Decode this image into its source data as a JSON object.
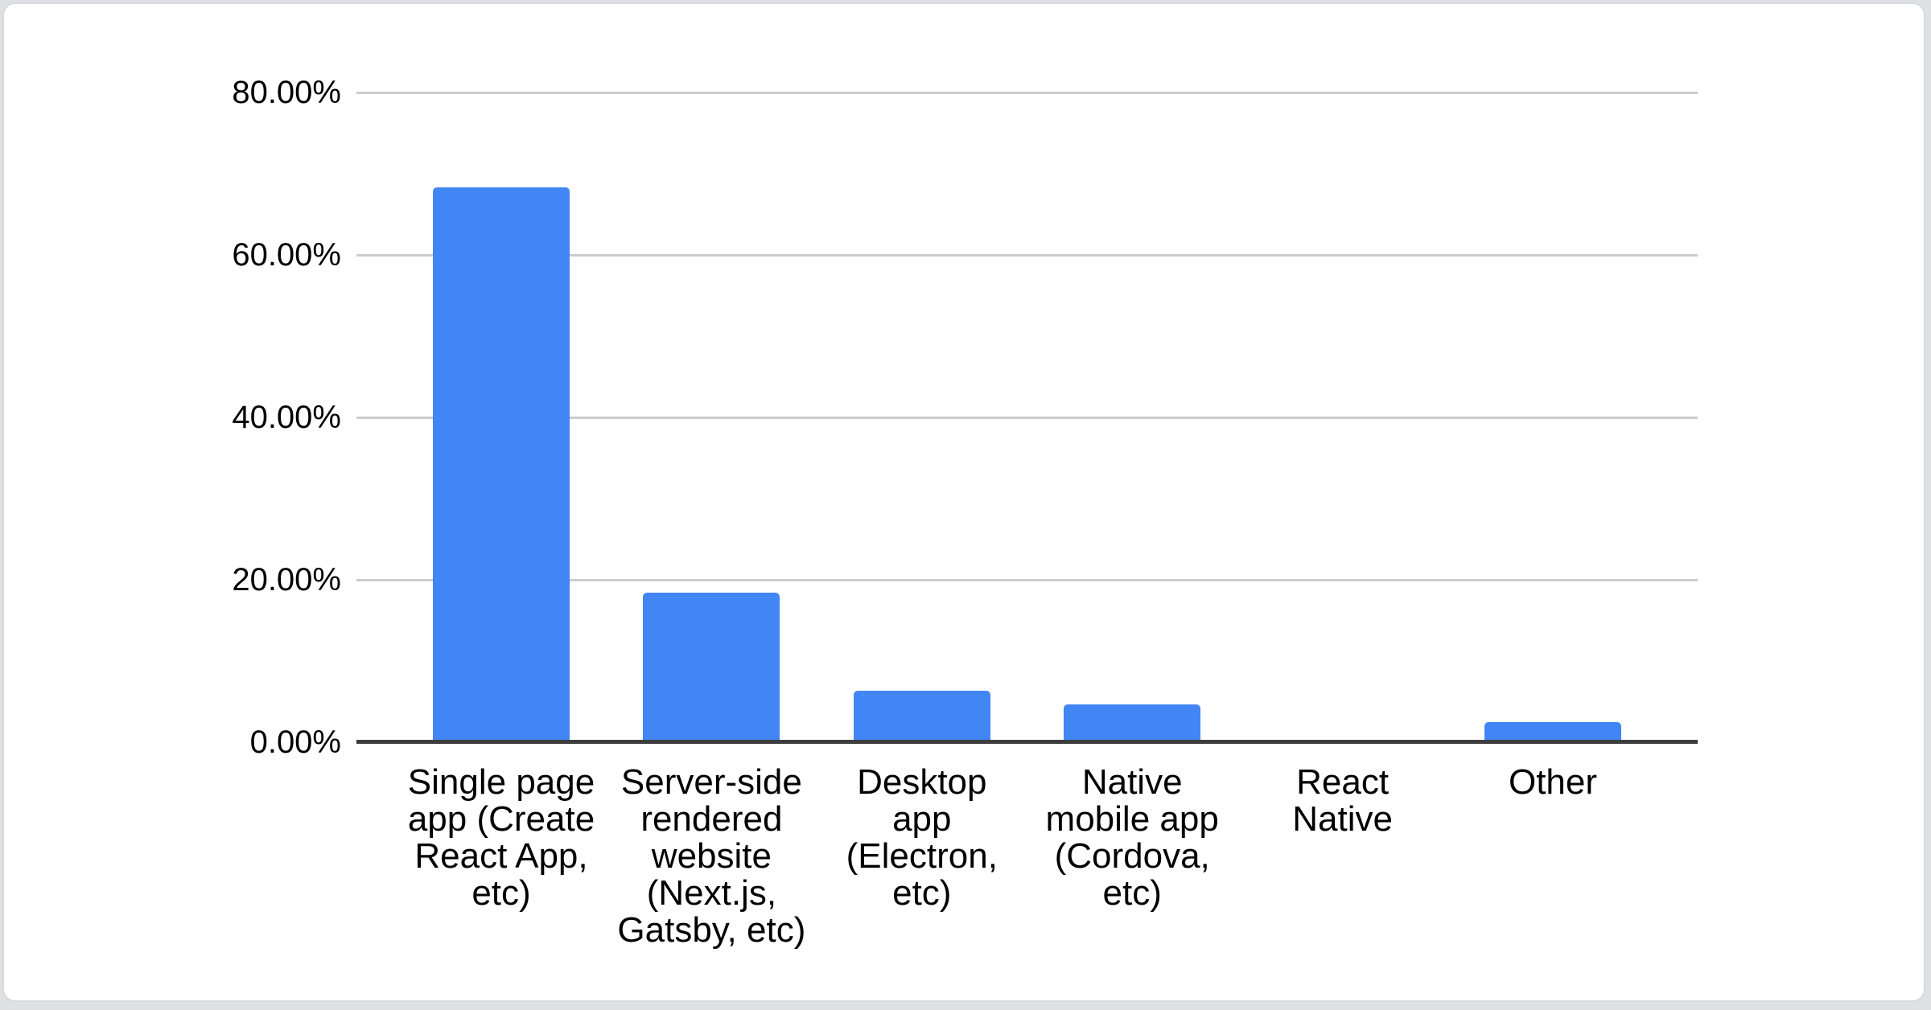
{
  "page": {
    "background_color": "#dde1e4",
    "card_background_color": "#ffffff",
    "card_border_color": "#d6dade"
  },
  "chart_data": {
    "type": "bar",
    "title": "",
    "categories": [
      "Single page app (Create React App, etc)",
      "Server-side rendered website (Next.js, Gatsby, etc)",
      "Desktop app (Electron, etc)",
      "Native mobile app (Cordova, etc)",
      "React Native",
      "Other"
    ],
    "category_label_lines": [
      "Single page\napp (Create\nReact App,\netc)",
      "Server-side\nrendered\nwebsite\n(Next.js,\nGatsby, etc)",
      "Desktop\napp\n(Electron,\netc)",
      "Native\nmobile app\n(Cordova,\netc)",
      "React\nNative",
      "Other"
    ],
    "values": [
      68.3,
      18.4,
      6.3,
      4.7,
      0,
      2.5
    ],
    "value_unit": "%",
    "xlabel": "",
    "ylabel": "",
    "y_axis": {
      "min": 0,
      "max": 80,
      "tick_labels": [
        "80.00%",
        "60.00%",
        "40.00%",
        "20.00%",
        "0.00%"
      ],
      "tick_values": [
        80,
        60,
        40,
        20,
        0
      ]
    },
    "grid": true,
    "legend_position": "none",
    "colors": {
      "bar": "#4285f4",
      "gridline": "#cccccc",
      "axis_line": "#3d3d3d",
      "label_text": "#000000"
    }
  }
}
